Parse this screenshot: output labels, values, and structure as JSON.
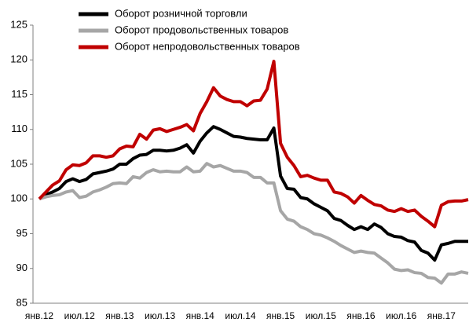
{
  "chart_data": {
    "type": "line",
    "categories": [
      "янв.12",
      null,
      null,
      null,
      null,
      null,
      "июл.12",
      null,
      null,
      null,
      null,
      null,
      "янв.13",
      null,
      null,
      null,
      null,
      null,
      "июл.13",
      null,
      null,
      null,
      null,
      null,
      "янв.14",
      null,
      null,
      null,
      null,
      null,
      "июл.14",
      null,
      null,
      null,
      null,
      null,
      "янв.15",
      null,
      null,
      null,
      null,
      null,
      "июл.15",
      null,
      null,
      null,
      null,
      null,
      "янв.16",
      null,
      null,
      null,
      null,
      null,
      "июл.16",
      null,
      null,
      null,
      null,
      null,
      "янв.17",
      null,
      null,
      null,
      null
    ],
    "series": [
      {
        "name": "Оборот розничной торговли",
        "color": "#000000",
        "values": [
          100,
          100.6,
          101.0,
          101.5,
          102.5,
          102.9,
          102.5,
          102.8,
          103.6,
          103.8,
          104.0,
          104.3,
          105.0,
          105.0,
          105.8,
          106.3,
          106.4,
          107.0,
          107.0,
          106.9,
          107.0,
          107.3,
          107.8,
          106.6,
          108.3,
          109.5,
          110.4,
          110.0,
          109.5,
          109.0,
          108.9,
          108.7,
          108.6,
          108.5,
          108.5,
          110.2,
          103.3,
          101.5,
          101.4,
          100.2,
          100.0,
          99.3,
          98.8,
          98.3,
          97.2,
          96.9,
          96.2,
          95.6,
          96.0,
          95.6,
          96.4,
          95.9,
          95.0,
          94.6,
          94.5,
          94.0,
          93.8,
          92.6,
          92.2,
          91.2,
          93.4,
          93.6,
          93.9,
          93.9,
          93.9
        ]
      },
      {
        "name": "Оборот продовольственных товаров",
        "color": "#a6a6a6",
        "values": [
          100,
          100.3,
          100.5,
          100.6,
          101.0,
          101.2,
          100.2,
          100.4,
          101.0,
          101.3,
          101.7,
          102.2,
          102.3,
          102.2,
          103.2,
          103.0,
          103.8,
          104.2,
          103.9,
          104.0,
          103.9,
          103.9,
          104.6,
          103.9,
          104.0,
          105.1,
          104.6,
          104.8,
          104.4,
          104.0,
          104.0,
          103.8,
          103.1,
          103.1,
          102.3,
          102.3,
          98.3,
          97.1,
          96.8,
          96.0,
          95.6,
          95.0,
          94.8,
          94.4,
          93.9,
          93.3,
          92.8,
          92.3,
          92.5,
          92.3,
          92.2,
          91.5,
          90.8,
          89.9,
          89.7,
          89.8,
          89.4,
          89.3,
          88.7,
          88.6,
          87.9,
          89.2,
          89.2,
          89.5,
          89.3
        ]
      },
      {
        "name": "Оборот непродовольственных товаров",
        "color": "#c00000",
        "values": [
          100,
          101,
          102,
          102.6,
          104.2,
          104.9,
          104.8,
          105.2,
          106.2,
          106.2,
          106.0,
          106.2,
          107.2,
          107.6,
          107.5,
          109.3,
          108.6,
          109.9,
          110.1,
          109.7,
          110.0,
          110.3,
          110.7,
          109.8,
          112.3,
          114.0,
          116.0,
          114.8,
          114.3,
          114.0,
          114.0,
          113.4,
          114.1,
          114.2,
          115.8,
          119.8,
          108.0,
          106.0,
          104.8,
          103.2,
          103.4,
          103.0,
          102.7,
          102.7,
          101.0,
          100.8,
          100.3,
          99.4,
          100.5,
          99.8,
          99.2,
          99.0,
          98.4,
          98.2,
          98.6,
          98.2,
          98.4,
          97.5,
          96.8,
          96.0,
          99.1,
          99.6,
          99.7,
          99.7,
          99.9
        ]
      }
    ],
    "ylim": [
      85,
      125
    ],
    "yticks": [
      85,
      90,
      95,
      100,
      105,
      110,
      115,
      120,
      125
    ],
    "legend": "top-left"
  }
}
